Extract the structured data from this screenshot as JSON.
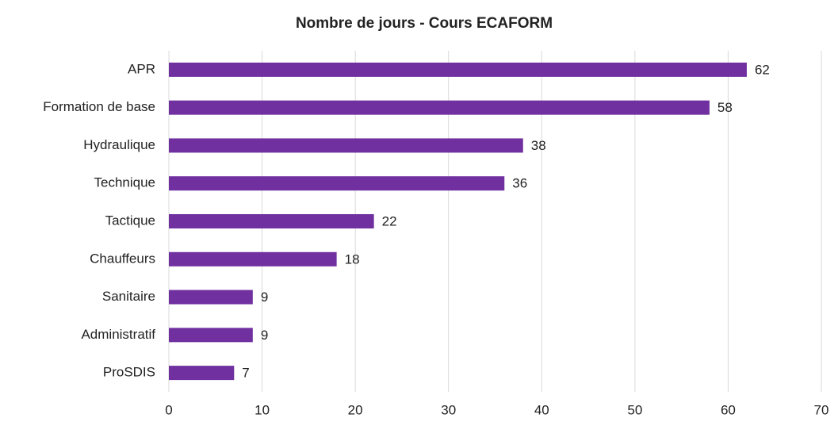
{
  "chart_data": {
    "type": "bar",
    "orientation": "horizontal",
    "title": "Nombre de jours - Cours ECAFORM",
    "categories": [
      "APR",
      "Formation de base",
      "Hydraulique",
      "Technique",
      "Tactique",
      "Chauffeurs",
      "Sanitaire",
      "Administratif",
      "ProSDIS"
    ],
    "values": [
      62,
      58,
      38,
      36,
      22,
      18,
      9,
      9,
      7
    ],
    "color": "#7030a0",
    "xlim": [
      0,
      70
    ],
    "xticks": [
      0,
      10,
      20,
      30,
      40,
      50,
      60,
      70
    ],
    "grid": true
  }
}
